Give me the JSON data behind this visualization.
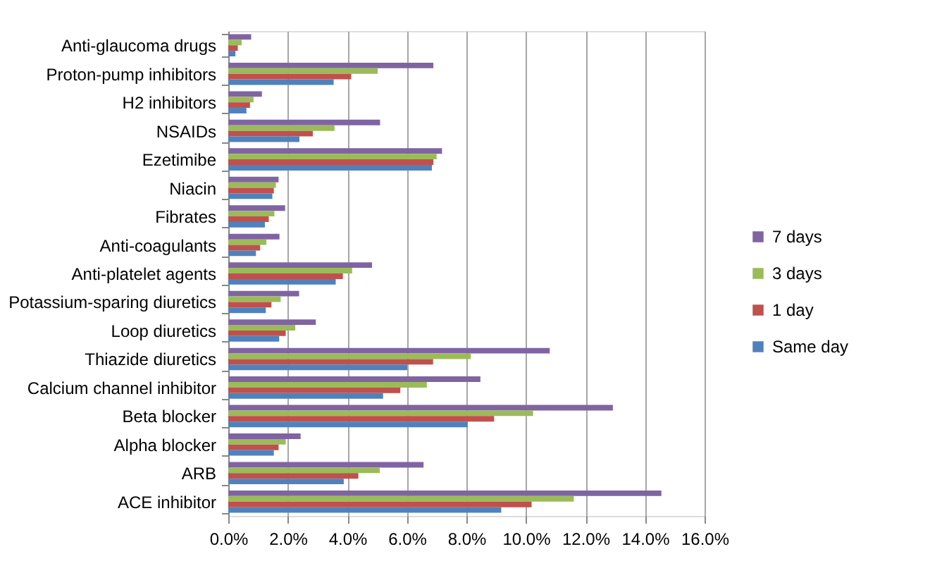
{
  "chart_data": {
    "type": "bar",
    "orientation": "horizontal",
    "categories": [
      "Anti-glaucoma drugs",
      "Proton-pump inhibitors",
      "H2 inhibitors",
      "NSAIDs",
      "Ezetimibe",
      "Niacin",
      "Fibrates",
      "Anti-coagulants",
      "Anti-platelet agents",
      "Potassium-sparing diuretics",
      "Loop diuretics",
      "Thiazide diuretics",
      "Calcium channel inhibitor",
      "Beta blocker",
      "Alpha blocker",
      "ARB",
      "ACE inhibitor"
    ],
    "series": [
      {
        "name": "7 days",
        "color": "#8064a2",
        "values": [
          0.77,
          6.89,
          1.13,
          5.1,
          7.18,
          1.69,
          1.91,
          1.72,
          4.83,
          2.38,
          2.94,
          10.8,
          8.47,
          12.92,
          2.43,
          6.56,
          14.55
        ]
      },
      {
        "name": "3 days",
        "color": "#9bbb59",
        "values": [
          0.45,
          5.02,
          0.85,
          3.57,
          7.0,
          1.6,
          1.55,
          1.28,
          4.16,
          1.76,
          2.25,
          8.15,
          6.67,
          10.24,
          1.93,
          5.09,
          11.61
        ]
      },
      {
        "name": "1 day",
        "color": "#c0504d",
        "values": [
          0.32,
          4.13,
          0.73,
          2.84,
          6.89,
          1.53,
          1.36,
          1.07,
          3.85,
          1.45,
          1.93,
          6.88,
          5.78,
          8.93,
          1.69,
          4.37,
          10.19
        ]
      },
      {
        "name": "Same day",
        "color": "#4f81bd",
        "values": [
          0.24,
          3.54,
          0.61,
          2.39,
          6.84,
          1.48,
          1.23,
          0.93,
          3.61,
          1.26,
          1.71,
          6.01,
          5.2,
          8.04,
          1.53,
          3.88,
          9.17
        ]
      }
    ],
    "xlim": [
      0,
      16
    ],
    "xticks": [
      {
        "value": 0,
        "label": "0.0%"
      },
      {
        "value": 2,
        "label": "2.0%"
      },
      {
        "value": 4,
        "label": "4.0%"
      },
      {
        "value": 6,
        "label": "6.0%"
      },
      {
        "value": 8,
        "label": "8.0%"
      },
      {
        "value": 10,
        "label": "10.0%"
      },
      {
        "value": 12,
        "label": "12.0%"
      },
      {
        "value": 14,
        "label": "14.0%"
      },
      {
        "value": 16,
        "label": "16.0%"
      }
    ],
    "grid": "x",
    "legend": "right"
  }
}
